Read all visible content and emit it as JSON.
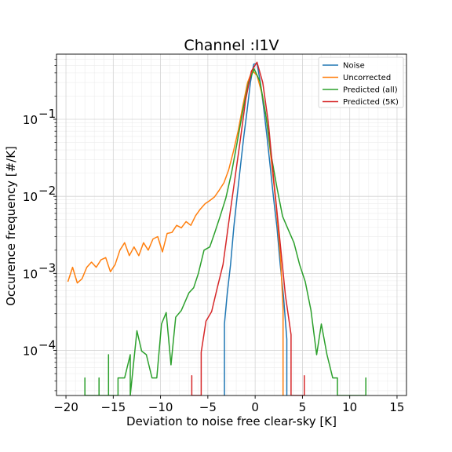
{
  "chart_data": {
    "type": "line",
    "title": "Channel :I1V",
    "xlabel": "Deviation to noise free clear-sky [K]",
    "ylabel": "Occurence frequency [#/K]",
    "xscale": "linear",
    "yscale": "log",
    "xlim": [
      -21,
      16
    ],
    "ylim": [
      2.6e-05,
      0.7
    ],
    "xticks": [
      -20,
      -15,
      -10,
      -5,
      0,
      5,
      10,
      15
    ],
    "xtick_labels": [
      "−20",
      "−15",
      "−10",
      "−5",
      "0",
      "5",
      "10",
      "15"
    ],
    "yticks": [
      0.0001,
      0.001,
      0.01,
      0.1
    ],
    "ytick_labels": [
      "10",
      "10",
      "10",
      "10"
    ],
    "ytick_exponents": [
      "−4",
      "−3",
      "−2",
      "−1"
    ],
    "grid": true,
    "legend_position": "top-right",
    "series": [
      {
        "name": "Noise",
        "color": "#1f77b4",
        "x": [
          -3.25,
          -3.25,
          -2.95,
          -2.6,
          -2.25,
          -1.9,
          -1.55,
          -1.2,
          -0.85,
          -0.5,
          -0.15,
          0.2,
          0.55,
          0.9,
          1.25,
          1.6,
          1.95,
          2.3,
          2.65,
          3.0,
          3.35,
          3.35
        ],
        "y": [
          2.6e-05,
          0.00022,
          0.00055,
          0.0013,
          0.004,
          0.01,
          0.025,
          0.06,
          0.13,
          0.3,
          0.52,
          0.53,
          0.3,
          0.14,
          0.06,
          0.024,
          0.0095,
          0.004,
          0.0013,
          0.0005,
          0.00014,
          2.6e-05
        ]
      },
      {
        "name": "Uncorrected",
        "color": "#ff7f0e",
        "x": [
          -19.8,
          -19.3,
          -18.8,
          -18.3,
          -17.8,
          -17.3,
          -16.8,
          -16.3,
          -15.8,
          -15.3,
          -14.8,
          -14.3,
          -13.8,
          -13.3,
          -12.8,
          -12.3,
          -11.8,
          -11.3,
          -10.8,
          -10.3,
          -9.8,
          -9.3,
          -8.8,
          -8.3,
          -7.8,
          -7.3,
          -6.8,
          -6.3,
          -5.8,
          -5.3,
          -4.8,
          -4.3,
          -3.8,
          -3.3,
          -2.8,
          -2.3,
          -1.8,
          -1.3,
          -0.8,
          -0.3,
          0.2,
          0.7,
          1.2,
          1.7,
          2.2,
          2.7,
          2.95,
          2.95
        ],
        "y": [
          0.00078,
          0.0012,
          0.00075,
          0.00085,
          0.0012,
          0.0014,
          0.0012,
          0.0015,
          0.0016,
          0.00105,
          0.0013,
          0.002,
          0.0025,
          0.0017,
          0.0022,
          0.0017,
          0.0025,
          0.002,
          0.0028,
          0.003,
          0.0019,
          0.0033,
          0.0034,
          0.0042,
          0.0039,
          0.0047,
          0.0042,
          0.0056,
          0.0068,
          0.008,
          0.0088,
          0.0098,
          0.012,
          0.015,
          0.022,
          0.038,
          0.07,
          0.15,
          0.3,
          0.43,
          0.37,
          0.22,
          0.1,
          0.03,
          0.008,
          0.0015,
          0.00035,
          2.6e-05
        ]
      },
      {
        "name": "Predicted (all)",
        "color": "#2ca02c",
        "x": [
          -18.0,
          -18.0,
          -18.0,
          -17.5,
          -16.5,
          -16.5,
          -16.5,
          -15.5,
          -15.5,
          -15.5,
          -14.5,
          -14.5,
          -13.8,
          -13.2,
          -13.2,
          -13.2,
          -12.5,
          -12.0,
          -11.5,
          -10.9,
          -10.4,
          -9.9,
          -9.4,
          -8.9,
          -8.4,
          -7.8,
          -7.0,
          -6.5,
          -6.0,
          -5.4,
          -4.8,
          -4.3,
          -3.7,
          -3.1,
          -2.5,
          -1.9,
          -1.3,
          -0.7,
          -0.1,
          0.5,
          1.1,
          1.7,
          2.3,
          2.9,
          3.5,
          4.1,
          4.7,
          5.3,
          5.9,
          6.5,
          7.0,
          7.6,
          8.2,
          8.7,
          8.7,
          11.7,
          11.7,
          11.7
        ],
        "y": [
          2.6e-05,
          4.4e-05,
          2.6e-05,
          2.6e-05,
          2.6e-05,
          4.4e-05,
          2.6e-05,
          2.6e-05,
          8.8e-05,
          2.6e-05,
          2.6e-05,
          4.4e-05,
          4.4e-05,
          8.8e-05,
          2.6e-05,
          2.6e-05,
          0.00018,
          9.8e-05,
          8.8e-05,
          4.4e-05,
          4.4e-05,
          0.00022,
          0.00031,
          6.5e-05,
          0.00027,
          0.00033,
          0.00056,
          0.00065,
          0.001,
          0.002,
          0.0022,
          0.0033,
          0.0055,
          0.0095,
          0.02,
          0.05,
          0.13,
          0.3,
          0.45,
          0.31,
          0.12,
          0.034,
          0.013,
          0.0055,
          0.0037,
          0.0025,
          0.0013,
          0.00078,
          0.00033,
          8.8e-05,
          0.00022,
          8.8e-05,
          4.4e-05,
          4.4e-05,
          2.6e-05,
          2.6e-05,
          4.4e-05,
          2.6e-05
        ]
      },
      {
        "name": "Predicted (5K)",
        "color": "#d62728",
        "x": [
          -6.7,
          -6.7,
          -6.7,
          -5.7,
          -5.7,
          -5.2,
          -4.6,
          -4.0,
          -3.4,
          -2.8,
          -2.2,
          -1.6,
          -1.0,
          -0.4,
          0.2,
          0.8,
          1.4,
          2.0,
          2.6,
          3.2,
          3.8,
          3.8,
          5.2,
          5.2,
          5.2
        ],
        "y": [
          2.6e-05,
          4.7e-05,
          2.6e-05,
          2.6e-05,
          9.5e-05,
          0.00024,
          0.00032,
          0.00065,
          0.0013,
          0.0045,
          0.015,
          0.05,
          0.18,
          0.42,
          0.55,
          0.3,
          0.09,
          0.015,
          0.0028,
          0.00052,
          0.00016,
          2.6e-05,
          2.6e-05,
          4.7e-05,
          2.6e-05
        ]
      }
    ]
  }
}
